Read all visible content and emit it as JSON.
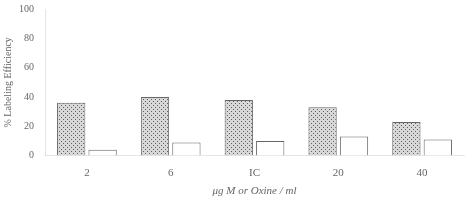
{
  "chart_data": {
    "type": "bar",
    "categories": [
      "2",
      "6",
      "IC",
      "20",
      "40"
    ],
    "series": [
      {
        "color": "#d8d8d8",
        "values": [
          36,
          40,
          38,
          33,
          23
        ]
      },
      {
        "color": "#ffffff",
        "values": [
          4,
          9,
          10,
          13,
          11
        ]
      }
    ],
    "xlabel": "μg M or Oxine / ml",
    "ylabel": "% Labeling Efficiency",
    "ylim": [
      0,
      100
    ],
    "yticks": [
      0,
      20,
      40,
      60,
      80,
      100
    ],
    "grid": false
  }
}
